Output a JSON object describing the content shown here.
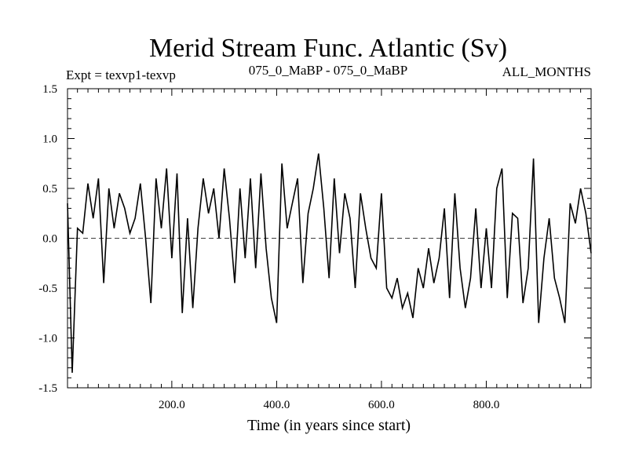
{
  "chart_data": {
    "type": "line",
    "title": "Merid Stream Func. Atlantic (Sv)",
    "subtitle_left": "Expt = texvp1-texvp",
    "subtitle_center": "075_0_MaBP - 075_0_MaBP",
    "subtitle_right": "ALL_MONTHS",
    "xlabel": "Time (in years since start)",
    "ylabel": "",
    "xlim": [
      1,
      1000
    ],
    "ylim": [
      -1.5,
      1.5
    ],
    "xticks": [
      200,
      400,
      600,
      800
    ],
    "xtick_labels": [
      "200.0",
      "400.0",
      "600.0",
      "800.0"
    ],
    "yticks": [
      -1.5,
      -1.0,
      -0.5,
      0.0,
      0.5,
      1.0,
      1.5
    ],
    "ytick_labels": [
      "-1.5",
      "-1.0",
      "-0.5",
      "0.0",
      "0.5",
      "1.0",
      "1.5"
    ],
    "zero_line": 0.0,
    "series": [
      {
        "name": "Merid Stream Func. Atlantic",
        "x": [
          1,
          10,
          20,
          30,
          40,
          50,
          60,
          70,
          80,
          90,
          100,
          110,
          120,
          130,
          140,
          150,
          160,
          170,
          180,
          190,
          200,
          210,
          220,
          230,
          240,
          250,
          260,
          270,
          280,
          290,
          300,
          310,
          320,
          330,
          340,
          350,
          360,
          370,
          380,
          390,
          400,
          410,
          420,
          430,
          440,
          450,
          460,
          470,
          480,
          490,
          500,
          510,
          520,
          530,
          540,
          550,
          560,
          570,
          580,
          590,
          600,
          610,
          620,
          630,
          640,
          650,
          660,
          670,
          680,
          690,
          700,
          710,
          720,
          730,
          740,
          750,
          760,
          770,
          780,
          790,
          800,
          810,
          820,
          830,
          840,
          850,
          860,
          870,
          880,
          890,
          900,
          910,
          920,
          930,
          940,
          950,
          960,
          970,
          980,
          990,
          1000
        ],
        "y": [
          0.35,
          -1.35,
          0.1,
          0.05,
          0.55,
          0.2,
          0.6,
          -0.45,
          0.5,
          0.1,
          0.45,
          0.3,
          0.05,
          0.2,
          0.55,
          0.0,
          -0.65,
          0.6,
          0.1,
          0.7,
          -0.2,
          0.65,
          -0.75,
          0.2,
          -0.7,
          0.1,
          0.6,
          0.25,
          0.5,
          0.0,
          0.7,
          0.2,
          -0.45,
          0.5,
          -0.2,
          0.6,
          -0.3,
          0.65,
          -0.1,
          -0.6,
          -0.85,
          0.75,
          0.1,
          0.35,
          0.6,
          -0.45,
          0.25,
          0.5,
          0.85,
          0.3,
          -0.4,
          0.6,
          -0.15,
          0.45,
          0.2,
          -0.5,
          0.45,
          0.1,
          -0.2,
          -0.3,
          0.45,
          -0.5,
          -0.6,
          -0.4,
          -0.7,
          -0.55,
          -0.8,
          -0.3,
          -0.5,
          -0.1,
          -0.45,
          -0.2,
          0.3,
          -0.6,
          0.45,
          -0.3,
          -0.7,
          -0.4,
          0.3,
          -0.5,
          0.1,
          -0.5,
          0.5,
          0.7,
          -0.6,
          0.25,
          0.2,
          -0.65,
          -0.3,
          0.8,
          -0.85,
          -0.2,
          0.2,
          -0.4,
          -0.6,
          -0.85,
          0.35,
          0.15,
          0.5,
          0.25,
          -0.15
        ]
      }
    ]
  }
}
